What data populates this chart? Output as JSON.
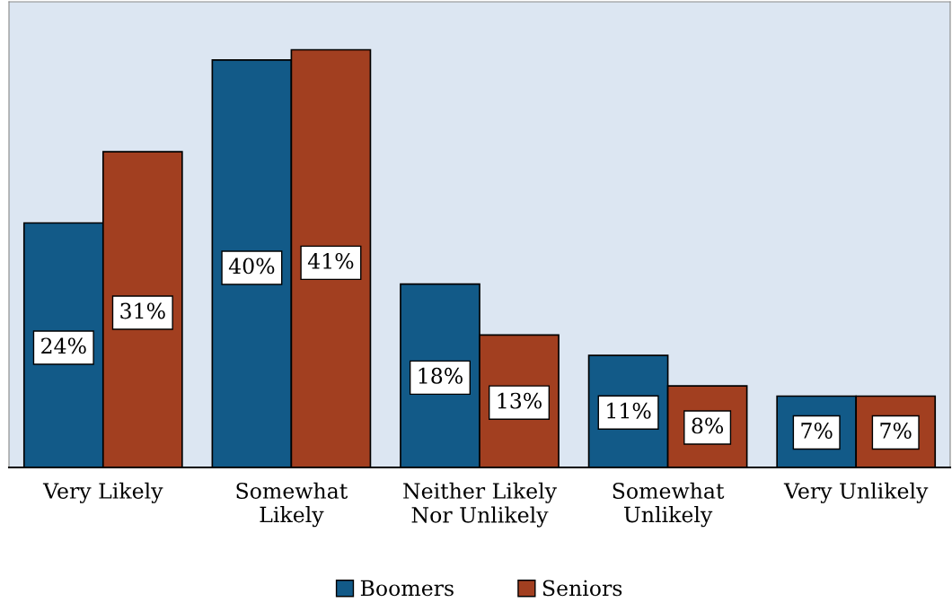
{
  "chart_data": {
    "type": "bar",
    "categories": [
      "Very Likely",
      "Somewhat\nLikely",
      "Neither Likely\nNor Unlikely",
      "Somewhat\nUnlikely",
      "Very Unlikely"
    ],
    "series": [
      {
        "name": "Boomers",
        "color": "#125a88",
        "values": [
          24,
          40,
          18,
          11,
          7
        ],
        "value_labels": [
          "24%",
          "40%",
          "18%",
          "11%",
          "7%"
        ]
      },
      {
        "name": "Seniors",
        "color": "#a23f20",
        "values": [
          31,
          41,
          13,
          8,
          7
        ],
        "value_labels": [
          "31%",
          "41%",
          "13%",
          "8%",
          "7%"
        ]
      }
    ],
    "grid": false,
    "legend": "bottom"
  }
}
